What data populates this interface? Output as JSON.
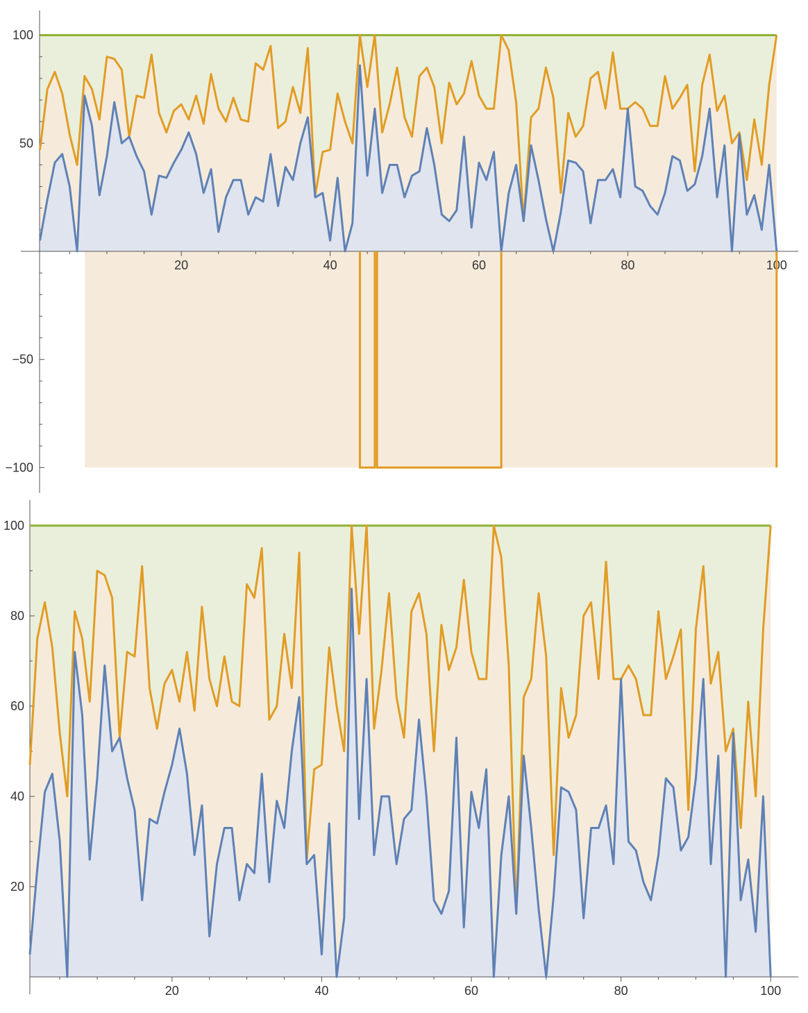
{
  "colors": {
    "series1": "#5E81B5",
    "series2": "#E19C24",
    "series3": "#8FB032",
    "fill1": "#DFE4EF",
    "fill2": "#F6EBDB",
    "fill3": "#EAEFDC",
    "axis": "#555555"
  },
  "chart_data": [
    {
      "type": "area",
      "xlim": [
        0,
        100
      ],
      "ylim": [
        -100,
        100
      ],
      "x_ticks": [
        "20",
        "40",
        "60",
        "80",
        "100"
      ],
      "y_ticks": [
        "100",
        "50",
        "-50",
        "-100"
      ],
      "grid": false,
      "legend": "none",
      "note": "orange series dips to -100 where values reach 100 and is filled down to -100",
      "x": [
        1,
        2,
        3,
        4,
        5,
        6,
        7,
        8,
        9,
        10,
        11,
        12,
        13,
        14,
        15,
        16,
        17,
        18,
        19,
        20,
        21,
        22,
        23,
        24,
        25,
        26,
        27,
        28,
        29,
        30,
        31,
        32,
        33,
        34,
        35,
        36,
        37,
        38,
        39,
        40,
        41,
        42,
        43,
        44,
        45,
        46,
        47,
        48,
        49,
        50,
        51,
        52,
        53,
        54,
        55,
        56,
        57,
        58,
        59,
        60,
        61,
        62,
        63,
        64,
        65,
        66,
        67,
        68,
        69,
        70,
        71,
        72,
        73,
        74,
        75,
        76,
        77,
        78,
        79,
        80,
        81,
        82,
        83,
        84,
        85,
        86,
        87,
        88,
        89,
        90,
        91,
        92,
        93,
        94,
        95,
        96,
        97,
        98,
        99,
        100
      ],
      "series": [
        {
          "values": [
            5,
            24,
            41,
            45,
            30,
            0,
            72,
            58,
            26,
            44,
            69,
            50,
            53,
            44,
            37,
            17,
            35,
            34,
            41,
            47,
            55,
            45,
            27,
            38,
            9,
            25,
            33,
            33,
            17,
            25,
            23,
            45,
            21,
            39,
            33,
            50,
            62,
            25,
            27,
            5,
            34,
            0,
            13,
            86,
            35,
            66,
            27,
            40,
            40,
            25,
            35,
            37,
            57,
            40,
            17,
            14,
            19,
            53,
            11,
            41,
            33,
            46,
            0,
            27,
            40,
            14,
            49,
            33,
            15,
            0,
            18,
            42,
            41,
            37,
            13,
            33,
            33,
            38,
            25,
            66,
            30,
            28,
            21,
            17,
            27,
            44,
            42,
            28,
            31,
            44,
            66,
            25,
            49,
            0,
            54,
            17,
            26,
            10,
            40,
            0
          ]
        },
        {
          "values": [
            47,
            75,
            83,
            73,
            54,
            40,
            81,
            75,
            61,
            90,
            89,
            84,
            53,
            72,
            71,
            91,
            64,
            55,
            65,
            68,
            61,
            72,
            59,
            82,
            66,
            60,
            71,
            61,
            60,
            87,
            84,
            95,
            57,
            60,
            76,
            64,
            94,
            26,
            46,
            47,
            73,
            60,
            50,
            100,
            76,
            100,
            55,
            68,
            85,
            62,
            53,
            81,
            85,
            76,
            50,
            78,
            68,
            73,
            88,
            72,
            66,
            66,
            100,
            93,
            69,
            14,
            62,
            66,
            85,
            71,
            27,
            64,
            53,
            58,
            80,
            83,
            66,
            92,
            66,
            66,
            69,
            66,
            58,
            58,
            81,
            66,
            71,
            77,
            37,
            77,
            91,
            65,
            72,
            50,
            55,
            33,
            61,
            40,
            77,
            100
          ]
        },
        {
          "values": [
            100,
            100,
            100,
            100,
            100,
            100,
            100,
            100,
            100,
            100,
            100,
            100,
            100,
            100,
            100,
            100,
            100,
            100,
            100,
            100,
            100,
            100,
            100,
            100,
            100,
            100,
            100,
            100,
            100,
            100,
            100,
            100,
            100,
            100,
            100,
            100,
            100,
            100,
            100,
            100,
            100,
            100,
            100,
            100,
            100,
            100,
            100,
            100,
            100,
            100,
            100,
            100,
            100,
            100,
            100,
            100,
            100,
            100,
            100,
            100,
            100,
            100,
            100,
            100,
            100,
            100,
            100,
            100,
            100,
            100,
            100,
            100,
            100,
            100,
            100,
            100,
            100,
            100,
            100,
            100,
            100,
            100,
            100,
            100,
            100,
            100,
            100,
            100,
            100,
            100,
            100,
            100,
            100,
            100,
            100,
            100,
            100,
            100,
            100,
            100
          ]
        }
      ]
    },
    {
      "type": "area",
      "xlim": [
        0,
        100
      ],
      "ylim": [
        0,
        100
      ],
      "x_ticks": [
        "20",
        "40",
        "60",
        "80",
        "100"
      ],
      "y_ticks": [
        "20",
        "40",
        "60",
        "80",
        "100"
      ],
      "grid": false,
      "legend": "none",
      "x": [
        1,
        2,
        3,
        4,
        5,
        6,
        7,
        8,
        9,
        10,
        11,
        12,
        13,
        14,
        15,
        16,
        17,
        18,
        19,
        20,
        21,
        22,
        23,
        24,
        25,
        26,
        27,
        28,
        29,
        30,
        31,
        32,
        33,
        34,
        35,
        36,
        37,
        38,
        39,
        40,
        41,
        42,
        43,
        44,
        45,
        46,
        47,
        48,
        49,
        50,
        51,
        52,
        53,
        54,
        55,
        56,
        57,
        58,
        59,
        60,
        61,
        62,
        63,
        64,
        65,
        66,
        67,
        68,
        69,
        70,
        71,
        72,
        73,
        74,
        75,
        76,
        77,
        78,
        79,
        80,
        81,
        82,
        83,
        84,
        85,
        86,
        87,
        88,
        89,
        90,
        91,
        92,
        93,
        94,
        95,
        96,
        97,
        98,
        99,
        100
      ],
      "series": [
        {
          "values": [
            5,
            24,
            41,
            45,
            30,
            0,
            72,
            58,
            26,
            44,
            69,
            50,
            53,
            44,
            37,
            17,
            35,
            34,
            41,
            47,
            55,
            45,
            27,
            38,
            9,
            25,
            33,
            33,
            17,
            25,
            23,
            45,
            21,
            39,
            33,
            50,
            62,
            25,
            27,
            5,
            34,
            0,
            13,
            86,
            35,
            66,
            27,
            40,
            40,
            25,
            35,
            37,
            57,
            40,
            17,
            14,
            19,
            53,
            11,
            41,
            33,
            46,
            0,
            27,
            40,
            14,
            49,
            33,
            15,
            0,
            18,
            42,
            41,
            37,
            13,
            33,
            33,
            38,
            25,
            66,
            30,
            28,
            21,
            17,
            27,
            44,
            42,
            28,
            31,
            44,
            66,
            25,
            49,
            0,
            54,
            17,
            26,
            10,
            40,
            0
          ]
        },
        {
          "values": [
            47,
            75,
            83,
            73,
            54,
            40,
            81,
            75,
            61,
            90,
            89,
            84,
            53,
            72,
            71,
            91,
            64,
            55,
            65,
            68,
            61,
            72,
            59,
            82,
            66,
            60,
            71,
            61,
            60,
            87,
            84,
            95,
            57,
            60,
            76,
            64,
            94,
            26,
            46,
            47,
            73,
            60,
            50,
            100,
            76,
            100,
            55,
            68,
            85,
            62,
            53,
            81,
            85,
            76,
            50,
            78,
            68,
            73,
            88,
            72,
            66,
            66,
            100,
            93,
            69,
            14,
            62,
            66,
            85,
            71,
            27,
            64,
            53,
            58,
            80,
            83,
            66,
            92,
            66,
            66,
            69,
            66,
            58,
            58,
            81,
            66,
            71,
            77,
            37,
            77,
            91,
            65,
            72,
            50,
            55,
            33,
            61,
            40,
            77,
            100
          ]
        },
        {
          "values": [
            100,
            100,
            100,
            100,
            100,
            100,
            100,
            100,
            100,
            100,
            100,
            100,
            100,
            100,
            100,
            100,
            100,
            100,
            100,
            100,
            100,
            100,
            100,
            100,
            100,
            100,
            100,
            100,
            100,
            100,
            100,
            100,
            100,
            100,
            100,
            100,
            100,
            100,
            100,
            100,
            100,
            100,
            100,
            100,
            100,
            100,
            100,
            100,
            100,
            100,
            100,
            100,
            100,
            100,
            100,
            100,
            100,
            100,
            100,
            100,
            100,
            100,
            100,
            100,
            100,
            100,
            100,
            100,
            100,
            100,
            100,
            100,
            100,
            100,
            100,
            100,
            100,
            100,
            100,
            100,
            100,
            100,
            100,
            100,
            100,
            100,
            100,
            100,
            100,
            100,
            100,
            100,
            100,
            100,
            100,
            100,
            100,
            100,
            100,
            100
          ]
        }
      ]
    }
  ]
}
